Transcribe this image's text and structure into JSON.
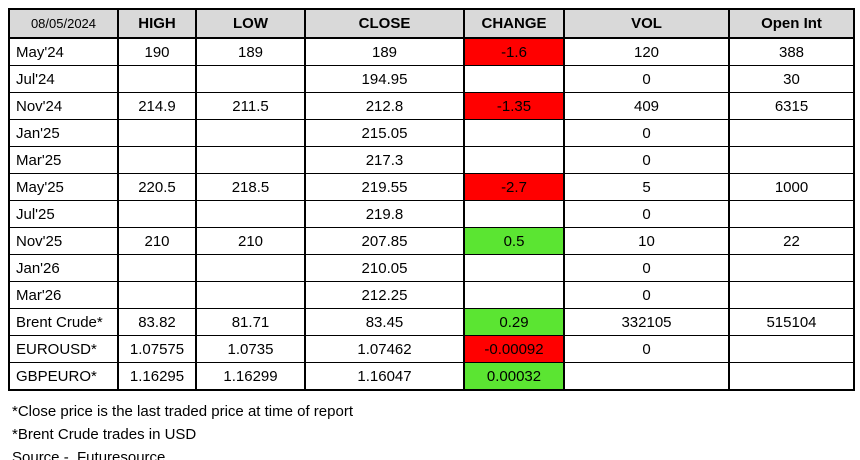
{
  "colors": {
    "negative_bg": "#ff0000",
    "positive_bg": "#5be532",
    "header_bg": "#d9d9d9",
    "border": "#000000"
  },
  "chart_data": {
    "type": "table",
    "title": "08/05/2024",
    "columns": [
      "HIGH",
      "LOW",
      "CLOSE",
      "CHANGE",
      "VOL",
      "Open Int"
    ],
    "rows": [
      {
        "label": "May'24",
        "high": "190",
        "low": "189",
        "close": "189",
        "change": "-1.6",
        "change_color": "negative",
        "vol": "120",
        "open_int": "388"
      },
      {
        "label": "Jul'24",
        "high": "",
        "low": "",
        "close": "194.95",
        "change": "",
        "change_color": "",
        "vol": "0",
        "open_int": "30"
      },
      {
        "label": "Nov'24",
        "high": "214.9",
        "low": "211.5",
        "close": "212.8",
        "change": "-1.35",
        "change_color": "negative",
        "vol": "409",
        "open_int": "6315"
      },
      {
        "label": "Jan'25",
        "high": "",
        "low": "",
        "close": "215.05",
        "change": "",
        "change_color": "",
        "vol": "0",
        "open_int": ""
      },
      {
        "label": "Mar'25",
        "high": "",
        "low": "",
        "close": "217.3",
        "change": "",
        "change_color": "",
        "vol": "0",
        "open_int": ""
      },
      {
        "label": "May'25",
        "high": "220.5",
        "low": "218.5",
        "close": "219.55",
        "change": "-2.7",
        "change_color": "negative",
        "vol": "5",
        "open_int": "1000"
      },
      {
        "label": "Jul'25",
        "high": "",
        "low": "",
        "close": "219.8",
        "change": "",
        "change_color": "",
        "vol": "0",
        "open_int": ""
      },
      {
        "label": "Nov'25",
        "high": "210",
        "low": "210",
        "close": "207.85",
        "change": "0.5",
        "change_color": "positive",
        "vol": "10",
        "open_int": "22"
      },
      {
        "label": "Jan'26",
        "high": "",
        "low": "",
        "close": "210.05",
        "change": "",
        "change_color": "",
        "vol": "0",
        "open_int": ""
      },
      {
        "label": "Mar'26",
        "high": "",
        "low": "",
        "close": "212.25",
        "change": "",
        "change_color": "",
        "vol": "0",
        "open_int": ""
      },
      {
        "label": "Brent Crude*",
        "high": "83.82",
        "low": "81.71",
        "close": "83.45",
        "change": "0.29",
        "change_color": "positive",
        "vol": "332105",
        "open_int": "515104"
      },
      {
        "label": "EUROUSD*",
        "high": "1.07575",
        "low": "1.0735",
        "close": "1.07462",
        "change": "-0.00092",
        "change_color": "negative",
        "vol": "0",
        "open_int": ""
      },
      {
        "label": "GBPEURO*",
        "high": "1.16295",
        "low": "1.16299",
        "close": "1.16047",
        "change": "0.00032",
        "change_color": "positive",
        "vol": "",
        "open_int": ""
      }
    ]
  },
  "footnotes": [
    "*Close price is the last traded price at time of report",
    "*Brent Crude trades in USD",
    "Source -  Futuresource"
  ]
}
